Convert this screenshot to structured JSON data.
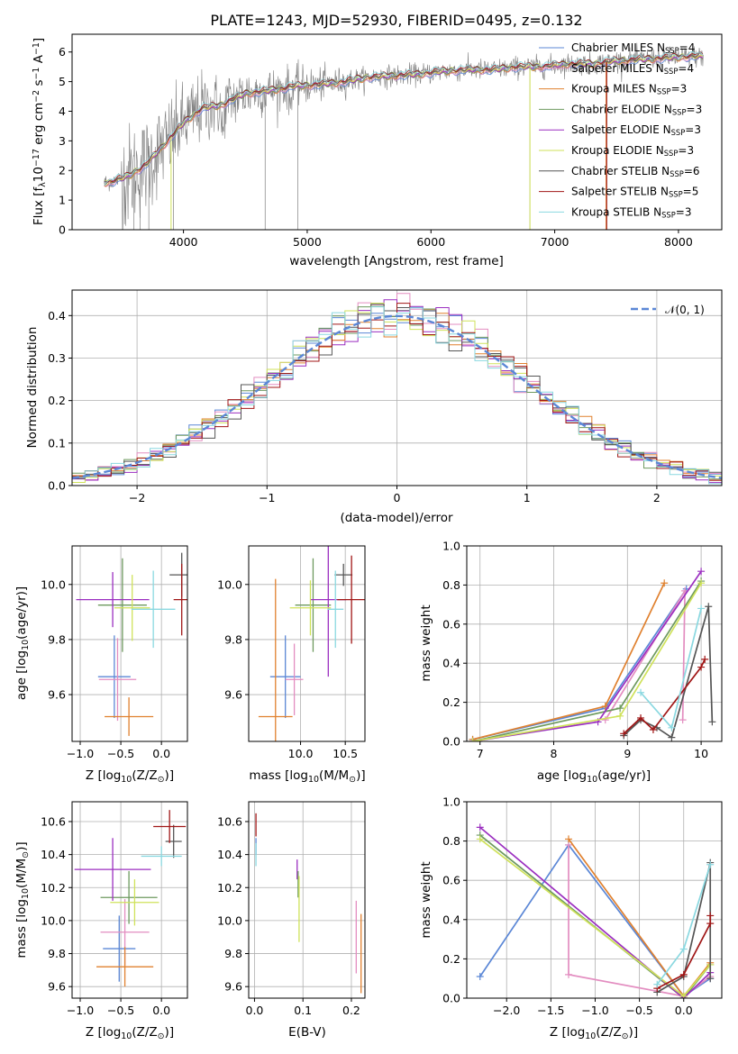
{
  "colors": {
    "Chabrier MILES": "#5b87d6",
    "Salpeter MILES": "#e38dc0",
    "Kroupa MILES": "#e0812f",
    "Chabrier ELODIE": "#6e9a5f",
    "Salpeter ELODIE": "#9b2fc0",
    "Kroupa ELODIE": "#cfe25a",
    "Chabrier STELIB": "#555555",
    "Salpeter STELIB": "#a01616",
    "Kroupa STELIB": "#8ad8e0"
  },
  "chart_data": [
    {
      "id": "spectrum",
      "type": "line",
      "title": "PLATE=1243, MJD=52930, FIBERID=0495, z=0.132",
      "xlabel": "wavelength [Angstrom, rest frame]",
      "ylabel": "Flux [f",
      "ylabel_parts": [
        "Flux [f",
        "λ",
        "10",
        "−17",
        " erg cm",
        "−2",
        " s",
        "−1",
        " A",
        "−1",
        "]"
      ],
      "xlim": [
        3100,
        8350
      ],
      "ylim": [
        0,
        6.6
      ],
      "xticks": [
        4000,
        5000,
        6000,
        7000,
        8000
      ],
      "yticks": [
        0,
        1,
        2,
        3,
        4,
        5,
        6
      ],
      "data_color": "#808080",
      "spectrum_knots": {
        "x": [
          3400,
          3550,
          3700,
          3850,
          4000,
          4150,
          4300,
          4500,
          4700,
          4900,
          5100,
          5300,
          5500,
          5700,
          5900,
          6100,
          6300,
          6500,
          6700,
          6900,
          7100,
          7300,
          7500,
          7700,
          7900,
          8100
        ],
        "y": [
          1.6,
          1.8,
          2.2,
          2.9,
          3.6,
          4.1,
          4.2,
          4.6,
          4.7,
          4.85,
          4.9,
          5.0,
          5.15,
          5.2,
          5.25,
          5.35,
          5.4,
          5.4,
          5.5,
          5.5,
          5.6,
          5.6,
          5.7,
          5.75,
          5.8,
          5.85
        ]
      },
      "legend": [
        {
          "name": "Chabrier MILES",
          "n": "4"
        },
        {
          "name": "Salpeter MILES",
          "n": "4"
        },
        {
          "name": "Kroupa MILES",
          "n": "3"
        },
        {
          "name": "Chabrier ELODIE",
          "n": "3"
        },
        {
          "name": "Salpeter ELODIE",
          "n": "3"
        },
        {
          "name": "Kroupa ELODIE",
          "n": "3"
        },
        {
          "name": "Chabrier STELIB",
          "n": "6"
        },
        {
          "name": "Salpeter STELIB",
          "n": "5"
        },
        {
          "name": "Kroupa STELIB",
          "n": "3"
        }
      ],
      "legend_prefix": "N",
      "legend_sub": "SSP",
      "legend_placement": "right",
      "grid": false
    },
    {
      "id": "residuals",
      "type": "line",
      "title": "",
      "xlabel": "(data-model)/error",
      "ylabel": "Normed distribution",
      "xlim": [
        -2.5,
        2.5
      ],
      "ylim": [
        0,
        0.46
      ],
      "xticks": [
        -2,
        -1,
        0,
        1,
        2
      ],
      "xtick_labels": [
        "−2",
        "−1",
        "0",
        "1",
        "2"
      ],
      "yticks": [
        0,
        0.1,
        0.2,
        0.3,
        0.4
      ],
      "ytick_labels": [
        "0.0",
        "0.1",
        "0.2",
        "0.3",
        "0.4"
      ],
      "bin_width": 0.1,
      "gaussian_label": "𝒩(0, 1)",
      "gaussian_color": "#5b87d6",
      "legend_placement": "top-right",
      "grid": true
    },
    {
      "id": "age_vs_Z",
      "type": "scatter",
      "xlabel": "Z [log",
      "xlabel_parts": [
        "Z [log",
        "10",
        "(Z/Z",
        "⊙",
        ")]"
      ],
      "ylabel_parts": [
        "age  [log",
        "10",
        "(age/yr)]"
      ],
      "xlim": [
        -1.1,
        0.32
      ],
      "ylim": [
        9.43,
        10.14
      ],
      "xticks": [
        -1.0,
        -0.5,
        0.0
      ],
      "xtick_labels": [
        "−1.0",
        "−0.5",
        "0.0"
      ],
      "yticks": [
        9.6,
        9.8,
        10.0
      ],
      "ytick_labels": [
        "9.6",
        "9.8",
        "10.0"
      ],
      "grid": true,
      "points": [
        {
          "model": "Chabrier MILES",
          "x": -0.58,
          "xerr": 0.2,
          "y": 9.665,
          "yerr": 0.15
        },
        {
          "model": "Salpeter MILES",
          "x": -0.54,
          "xerr": 0.23,
          "y": 9.655,
          "yerr": 0.15
        },
        {
          "model": "Kroupa MILES",
          "x": -0.4,
          "xerr": 0.3,
          "y": 9.52,
          "yerr": 0.07
        },
        {
          "model": "Chabrier ELODIE",
          "x": -0.48,
          "xerr": 0.3,
          "y": 9.925,
          "yerr": 0.17
        },
        {
          "model": "Salpeter ELODIE",
          "x": -0.6,
          "xerr": 0.45,
          "y": 9.945,
          "yerr": 0.1
        },
        {
          "model": "Kroupa ELODIE",
          "x": -0.36,
          "xerr": 0.22,
          "y": 9.915,
          "yerr": 0.12
        },
        {
          "model": "Chabrier STELIB",
          "x": 0.25,
          "xerr": 0.15,
          "y": 10.035,
          "yerr": 0.08
        },
        {
          "model": "Salpeter STELIB",
          "x": 0.25,
          "xerr": 0.1,
          "y": 9.945,
          "yerr": 0.13
        },
        {
          "model": "Kroupa STELIB",
          "x": -0.1,
          "xerr": 0.27,
          "y": 9.91,
          "yerr": 0.14
        }
      ]
    },
    {
      "id": "age_vs_mass",
      "type": "scatter",
      "xlabel_parts": [
        "mass [log",
        "10",
        "(M/M",
        "⊙",
        ")]"
      ],
      "xlim": [
        9.42,
        10.72
      ],
      "ylim": [
        9.43,
        10.14
      ],
      "xticks": [
        10.0,
        10.5
      ],
      "xtick_labels": [
        "10.0",
        "10.5"
      ],
      "yticks": [
        9.6,
        9.8,
        10.0
      ],
      "ytick_labels": [
        "9.6",
        "9.8",
        "10.0"
      ],
      "grid": true,
      "points": [
        {
          "model": "Chabrier MILES",
          "x": 9.83,
          "xerr": 0.17,
          "y": 9.665,
          "yerr": 0.15
        },
        {
          "model": "Salpeter MILES",
          "x": 9.93,
          "xerr": 0.1,
          "y": 9.655,
          "yerr": 0.13
        },
        {
          "model": "Kroupa MILES",
          "x": 9.72,
          "xerr": 0.19,
          "y": 9.52,
          "yerr": 0.5
        },
        {
          "model": "Chabrier ELODIE",
          "x": 10.14,
          "xerr": 0.2,
          "y": 9.925,
          "yerr": 0.17
        },
        {
          "model": "Salpeter ELODIE",
          "x": 10.31,
          "xerr": 0.2,
          "y": 9.945,
          "yerr": 0.28
        },
        {
          "model": "Kroupa ELODIE",
          "x": 10.11,
          "xerr": 0.23,
          "y": 9.915,
          "yerr": 0.1
        },
        {
          "model": "Chabrier STELIB",
          "x": 10.48,
          "xerr": 0.1,
          "y": 10.035,
          "yerr": 0.04
        },
        {
          "model": "Salpeter STELIB",
          "x": 10.57,
          "xerr": 0.16,
          "y": 9.945,
          "yerr": 0.16
        },
        {
          "model": "Kroupa STELIB",
          "x": 10.39,
          "xerr": 0.09,
          "y": 9.91,
          "yerr": 0.14
        }
      ]
    },
    {
      "id": "weight_vs_age",
      "type": "line",
      "xlabel_parts": [
        "age  [log",
        "10",
        "(age/yr)]"
      ],
      "ylabel": "mass weight",
      "xlim": [
        6.82,
        10.28
      ],
      "ylim": [
        0,
        1.0
      ],
      "xticks": [
        7,
        8,
        9,
        10
      ],
      "xtick_labels": [
        "7",
        "8",
        "9",
        "10"
      ],
      "yticks": [
        0,
        0.2,
        0.4,
        0.6,
        0.8,
        1.0
      ],
      "ytick_labels": [
        "0.0",
        "0.2",
        "0.4",
        "0.6",
        "0.8",
        "1.0"
      ],
      "grid": true,
      "series": [
        {
          "model": "Chabrier MILES",
          "x": [
            6.9,
            8.7,
            9.8
          ],
          "y": [
            0.01,
            0.17,
            0.78
          ]
        },
        {
          "model": "Salpeter MILES",
          "x": [
            8.7,
            9.78,
            9.75
          ],
          "y": [
            0.11,
            0.77,
            0.11
          ]
        },
        {
          "model": "Kroupa MILES",
          "x": [
            6.9,
            8.7,
            9.5
          ],
          "y": [
            0.01,
            0.18,
            0.81
          ]
        },
        {
          "model": "Chabrier ELODIE",
          "x": [
            6.9,
            8.9,
            10.0
          ],
          "y": [
            0.0,
            0.17,
            0.82
          ]
        },
        {
          "model": "Salpeter ELODIE",
          "x": [
            6.9,
            8.6,
            10.0
          ],
          "y": [
            0.0,
            0.1,
            0.87
          ]
        },
        {
          "model": "Kroupa ELODIE",
          "x": [
            6.9,
            8.9,
            10.0
          ],
          "y": [
            0.0,
            0.13,
            0.81
          ]
        },
        {
          "model": "Chabrier STELIB",
          "x": [
            8.95,
            9.18,
            9.4,
            9.6,
            10.1,
            10.15
          ],
          "y": [
            0.03,
            0.11,
            0.07,
            0.02,
            0.69,
            0.1
          ]
        },
        {
          "model": "Salpeter STELIB",
          "x": [
            8.95,
            9.18,
            9.35,
            10.0,
            10.05
          ],
          "y": [
            0.04,
            0.12,
            0.06,
            0.38,
            0.42
          ]
        },
        {
          "model": "Kroupa STELIB",
          "x": [
            9.18,
            9.6,
            10.0
          ],
          "y": [
            0.25,
            0.07,
            0.68
          ]
        }
      ]
    },
    {
      "id": "mass_vs_Z",
      "type": "scatter",
      "xlabel_parts": [
        "Z [log",
        "10",
        "(Z/Z",
        "⊙",
        ")]"
      ],
      "ylabel_parts": [
        "mass [log",
        "10",
        "(M/M",
        "⊙",
        ")]"
      ],
      "xlim": [
        -1.1,
        0.32
      ],
      "ylim": [
        9.53,
        10.72
      ],
      "xticks": [
        -1.0,
        -0.5,
        0.0
      ],
      "xtick_labels": [
        "−1.0",
        "−0.5",
        "0.0"
      ],
      "yticks": [
        9.6,
        9.8,
        10.0,
        10.2,
        10.4,
        10.6
      ],
      "ytick_labels": [
        "9.6",
        "9.8",
        "10.0",
        "10.2",
        "10.4",
        "10.6"
      ],
      "grid": true,
      "points": [
        {
          "model": "Chabrier MILES",
          "x": -0.52,
          "xerr": 0.2,
          "y": 9.83,
          "yerr": 0.2
        },
        {
          "model": "Salpeter MILES",
          "x": -0.45,
          "xerr": 0.3,
          "y": 9.93,
          "yerr": 0.2
        },
        {
          "model": "Kroupa MILES",
          "x": -0.45,
          "xerr": 0.35,
          "y": 9.72,
          "yerr": 0.12
        },
        {
          "model": "Chabrier ELODIE",
          "x": -0.4,
          "xerr": 0.35,
          "y": 10.14,
          "yerr": 0.16
        },
        {
          "model": "Salpeter ELODIE",
          "x": -0.6,
          "xerr": 0.47,
          "y": 10.31,
          "yerr": 0.19
        },
        {
          "model": "Kroupa ELODIE",
          "x": -0.33,
          "xerr": 0.3,
          "y": 10.11,
          "yerr": 0.14
        },
        {
          "model": "Chabrier STELIB",
          "x": 0.15,
          "xerr": 0.1,
          "y": 10.48,
          "yerr": 0.1
        },
        {
          "model": "Salpeter STELIB",
          "x": 0.1,
          "xerr": 0.2,
          "y": 10.57,
          "yerr": 0.1
        },
        {
          "model": "Kroupa STELIB",
          "x": 0.0,
          "xerr": 0.25,
          "y": 10.39,
          "yerr": 0.06
        }
      ]
    },
    {
      "id": "mass_vs_ebv",
      "type": "scatter",
      "xlabel": "E(B-V)",
      "xlim": [
        -0.012,
        0.228
      ],
      "ylim": [
        9.53,
        10.72
      ],
      "xticks": [
        0.0,
        0.1,
        0.2
      ],
      "xtick_labels": [
        "0.0",
        "0.1",
        "0.2"
      ],
      "yticks": [
        9.6,
        9.8,
        10.0,
        10.2,
        10.4,
        10.6
      ],
      "ytick_labels": [
        "9.6",
        "9.8",
        "10.0",
        "10.2",
        "10.4",
        "10.6"
      ],
      "grid": true,
      "points": [
        {
          "model": "Chabrier MILES",
          "x": 0.003,
          "xerr": 0,
          "y": 10.45,
          "yerr": 0.05
        },
        {
          "model": "Kroupa STELIB",
          "x": 0.003,
          "xerr": 0,
          "y": 10.4,
          "yerr": 0.07
        },
        {
          "model": "Salpeter STELIB",
          "x": 0.003,
          "xerr": 0,
          "y": 10.58,
          "yerr": 0.07
        },
        {
          "model": "Salpeter ELODIE",
          "x": 0.088,
          "xerr": 0,
          "y": 10.31,
          "yerr": 0.06
        },
        {
          "model": "Chabrier ELODIE",
          "x": 0.09,
          "xerr": 0,
          "y": 10.22,
          "yerr": 0.08
        },
        {
          "model": "Kroupa ELODIE",
          "x": 0.092,
          "xerr": 0,
          "y": 10.07,
          "yerr": 0.2
        },
        {
          "model": "Salpeter MILES",
          "x": 0.21,
          "xerr": 0,
          "y": 9.9,
          "yerr": 0.22
        },
        {
          "model": "Kroupa MILES",
          "x": 0.22,
          "xerr": 0,
          "y": 9.8,
          "yerr": 0.24
        }
      ]
    },
    {
      "id": "weight_vs_Z",
      "type": "line",
      "xlabel_parts": [
        "Z [log",
        "10",
        "(Z/Z",
        "⊙",
        ")]"
      ],
      "ylabel": "mass weight",
      "xlim": [
        -2.45,
        0.43
      ],
      "ylim": [
        0,
        1.0
      ],
      "xticks": [
        -2.0,
        -1.5,
        -1.0,
        -0.5,
        0.0
      ],
      "xtick_labels": [
        "−2.0",
        "−1.5",
        "−1.0",
        "−0.5",
        "0.0"
      ],
      "yticks": [
        0,
        0.2,
        0.4,
        0.6,
        0.8,
        1.0
      ],
      "ytick_labels": [
        "0.0",
        "0.2",
        "0.4",
        "0.6",
        "0.8",
        "1.0"
      ],
      "grid": true,
      "series": [
        {
          "model": "Chabrier MILES",
          "x": [
            -2.3,
            -1.3,
            0.0,
            0.3
          ],
          "y": [
            0.11,
            0.78,
            0.01,
            0.1
          ]
        },
        {
          "model": "Salpeter MILES",
          "x": [
            -1.3,
            -1.3,
            0.0,
            0.3
          ],
          "y": [
            0.78,
            0.12,
            0.01,
            0.11
          ]
        },
        {
          "model": "Kroupa MILES",
          "x": [
            -1.3,
            0.0,
            0.3
          ],
          "y": [
            0.81,
            0.01,
            0.18
          ]
        },
        {
          "model": "Chabrier ELODIE",
          "x": [
            -2.3,
            0.0,
            0.3
          ],
          "y": [
            0.83,
            0.0,
            0.17
          ]
        },
        {
          "model": "Salpeter ELODIE",
          "x": [
            -2.3,
            0.0,
            0.3
          ],
          "y": [
            0.87,
            0.0,
            0.13
          ]
        },
        {
          "model": "Kroupa ELODIE",
          "x": [
            -2.3,
            0.0,
            0.3
          ],
          "y": [
            0.81,
            0.01,
            0.17
          ]
        },
        {
          "model": "Chabrier STELIB",
          "x": [
            -0.3,
            0.0,
            0.3,
            0.3
          ],
          "y": [
            0.03,
            0.11,
            0.69,
            0.1
          ]
        },
        {
          "model": "Salpeter STELIB",
          "x": [
            -0.3,
            0.0,
            0.3,
            0.3
          ],
          "y": [
            0.05,
            0.12,
            0.38,
            0.42
          ]
        },
        {
          "model": "Kroupa STELIB",
          "x": [
            -0.3,
            0.0,
            0.3
          ],
          "y": [
            0.07,
            0.25,
            0.68
          ]
        }
      ]
    }
  ]
}
